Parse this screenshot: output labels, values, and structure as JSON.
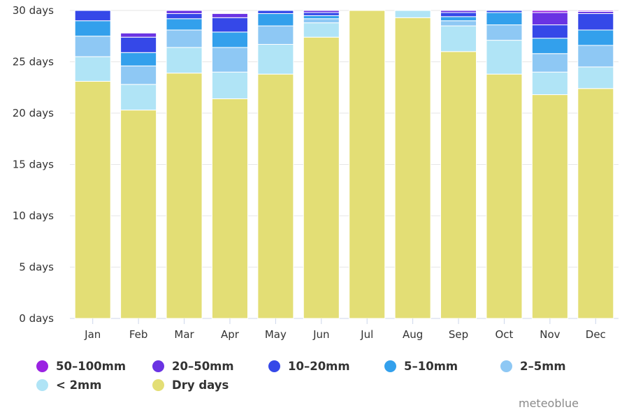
{
  "chart_data": {
    "type": "bar",
    "stacked": true,
    "categories": [
      "Jan",
      "Feb",
      "Mar",
      "Apr",
      "May",
      "Jun",
      "Jul",
      "Aug",
      "Sep",
      "Oct",
      "Nov",
      "Dec"
    ],
    "ylim": [
      0,
      30
    ],
    "y_ticks": [
      {
        "value": 0,
        "label": "0 days"
      },
      {
        "value": 5,
        "label": "5 days"
      },
      {
        "value": 10,
        "label": "10 days"
      },
      {
        "value": 15,
        "label": "15 days"
      },
      {
        "value": 20,
        "label": "20 days"
      },
      {
        "value": 25,
        "label": "25 days"
      },
      {
        "value": 30,
        "label": "30 days"
      }
    ],
    "grid": true,
    "legend_position": "bottom-left",
    "series": [
      {
        "name": "Dry days",
        "color": "#e3de75",
        "values": [
          23.1,
          20.3,
          23.9,
          21.4,
          23.8,
          27.4,
          30.0,
          29.3,
          26.0,
          23.8,
          21.8,
          22.4
        ]
      },
      {
        "name": "< 2mm",
        "color": "#b0e4f6",
        "values": [
          2.4,
          2.5,
          2.5,
          2.6,
          2.9,
          1.4,
          0.0,
          0.7,
          2.5,
          3.3,
          2.2,
          2.1
        ]
      },
      {
        "name": "2-5mm",
        "color": "#8ec8f4",
        "values": [
          2.0,
          1.8,
          1.7,
          2.4,
          1.8,
          0.4,
          0.0,
          0.0,
          0.5,
          1.5,
          1.8,
          2.1
        ]
      },
      {
        "name": "5-10mm",
        "color": "#33a0ec",
        "values": [
          1.5,
          1.3,
          1.1,
          1.5,
          1.2,
          0.3,
          0.0,
          0.0,
          0.4,
          1.2,
          1.5,
          1.5
        ]
      },
      {
        "name": "10-20mm",
        "color": "#3548e8",
        "values": [
          1.0,
          1.5,
          0.5,
          1.4,
          0.3,
          0.3,
          0.0,
          0.0,
          0.4,
          0.2,
          1.3,
          1.6
        ]
      },
      {
        "name": "20-50mm",
        "color": "#6a33e3",
        "values": [
          0.0,
          0.4,
          0.3,
          0.4,
          0.0,
          0.2,
          0.0,
          0.0,
          0.2,
          0.0,
          1.2,
          0.2
        ]
      },
      {
        "name": "50-100mm",
        "color": "#9a22e2",
        "values": [
          0.0,
          0.0,
          0.0,
          0.0,
          0.0,
          0.0,
          0.0,
          0.0,
          0.0,
          0.0,
          0.2,
          0.1
        ]
      }
    ],
    "legend_rows": [
      [
        "50-100mm",
        "20-50mm",
        "10-20mm",
        "5-10mm",
        "2-5mm"
      ],
      [
        "< 2mm",
        "Dry days"
      ]
    ]
  },
  "credit": "meteoblue"
}
